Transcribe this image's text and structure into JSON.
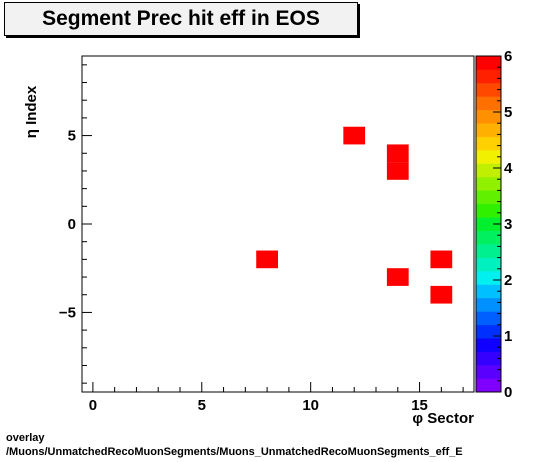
{
  "chart_data": {
    "type": "heatmap",
    "title": "Segment Prec hit eff in EOS",
    "xlabel": "φ Sector",
    "ylabel": "η Index",
    "xlim": [
      -0.5,
      17.5
    ],
    "ylim": [
      -9.5,
      9.5
    ],
    "x_ticks": [
      0,
      5,
      10,
      15
    ],
    "y_ticks": [
      -5,
      0,
      5
    ],
    "x_tick_labels": [
      "0",
      "5",
      "10",
      "15"
    ],
    "y_tick_labels": [
      "−5",
      "0",
      "5"
    ],
    "z_range": [
      0,
      6
    ],
    "z_ticks": [
      0,
      1,
      2,
      3,
      4,
      5,
      6
    ],
    "z_tick_labels": [
      "0",
      "1",
      "2",
      "3",
      "4",
      "5",
      "6"
    ],
    "cells": [
      {
        "x": 12,
        "y": 5,
        "value": 6
      },
      {
        "x": 14,
        "y": 4,
        "value": 6
      },
      {
        "x": 14,
        "y": 3,
        "value": 6
      },
      {
        "x": 8,
        "y": -2,
        "value": 6
      },
      {
        "x": 16,
        "y": -2,
        "value": 6
      },
      {
        "x": 14,
        "y": -3,
        "value": 6
      },
      {
        "x": 16,
        "y": -4,
        "value": 6
      }
    ],
    "palette": [
      "#7f00ff",
      "#5a00ff",
      "#3500ff",
      "#1000ff",
      "#0030ff",
      "#0060ff",
      "#0090ff",
      "#00c0ff",
      "#00f0f0",
      "#00f0c0",
      "#00f090",
      "#00f060",
      "#00f030",
      "#30f000",
      "#60f000",
      "#90f000",
      "#c0f000",
      "#f0f000",
      "#ffd000",
      "#ffb000",
      "#ff9000",
      "#ff7000",
      "#ff4800",
      "#ff2000",
      "#ff0000"
    ]
  },
  "footer": {
    "line1": "overlay",
    "line2": "/Muons/UnmatchedRecoMuonSegments/Muons_UnmatchedRecoMuonSegments_eff_E"
  }
}
